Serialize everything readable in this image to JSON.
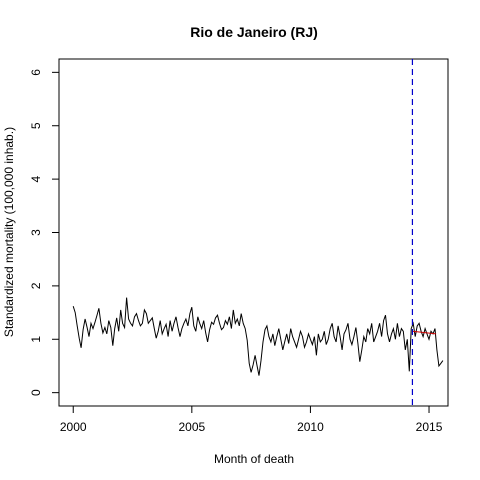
{
  "chart_data": {
    "type": "line",
    "title": "Rio de Janeiro (RJ)",
    "xlabel": "Month of death",
    "ylabel": "Standardized mortality (100,000 inhab.)",
    "xlim": [
      1999.4,
      2015.8
    ],
    "ylim": [
      -0.25,
      6.25
    ],
    "x_ticks": [
      2000,
      2005,
      2010,
      2015
    ],
    "x_tick_labels": [
      "2000",
      "2005",
      "2010",
      "2015"
    ],
    "y_ticks": [
      0,
      1,
      2,
      3,
      4,
      5,
      6
    ],
    "y_tick_labels": [
      "0",
      "1",
      "2",
      "3",
      "4",
      "5",
      "6"
    ],
    "grid": false,
    "series": [
      {
        "color": "#000000",
        "x_start": 2000.0,
        "x_step": 0.0833333,
        "values": [
          1.62,
          1.5,
          1.25,
          1.02,
          0.84,
          1.18,
          1.38,
          1.22,
          1.05,
          1.3,
          1.2,
          1.32,
          1.45,
          1.58,
          1.3,
          1.12,
          1.22,
          1.1,
          1.35,
          1.22,
          0.88,
          1.2,
          1.4,
          1.15,
          1.55,
          1.3,
          1.22,
          1.78,
          1.38,
          1.3,
          1.25,
          1.42,
          1.48,
          1.35,
          1.25,
          1.3,
          1.55,
          1.48,
          1.3,
          1.35,
          1.4,
          1.2,
          1.02,
          1.15,
          1.35,
          1.1,
          1.2,
          1.28,
          1.05,
          1.35,
          1.15,
          1.3,
          1.42,
          1.22,
          1.05,
          1.2,
          1.3,
          1.38,
          1.25,
          1.48,
          1.6,
          1.25,
          1.15,
          1.42,
          1.3,
          1.2,
          1.35,
          1.12,
          0.95,
          1.18,
          1.32,
          1.28,
          1.4,
          1.45,
          1.3,
          1.18,
          1.22,
          1.35,
          1.28,
          1.42,
          1.2,
          1.55,
          1.3,
          1.38,
          1.25,
          1.48,
          1.3,
          1.2,
          0.98,
          0.55,
          0.38,
          0.52,
          0.7,
          0.5,
          0.32,
          0.6,
          0.95,
          1.18,
          1.25,
          1.05,
          0.95,
          1.1,
          0.88,
          1.05,
          1.2,
          1.0,
          0.8,
          0.95,
          1.1,
          0.92,
          1.2,
          1.05,
          0.95,
          0.85,
          1.0,
          1.15,
          1.05,
          0.85,
          0.95,
          1.1,
          1.0,
          0.9,
          1.05,
          0.7,
          1.1,
          0.95,
          1.0,
          1.15,
          0.9,
          1.0,
          1.2,
          1.3,
          1.05,
          0.95,
          1.25,
          1.05,
          0.8,
          1.1,
          1.18,
          1.3,
          1.0,
          0.9,
          1.05,
          1.22,
          0.92,
          0.58,
          0.8,
          1.05,
          0.95,
          1.2,
          1.1,
          1.3,
          0.95,
          1.05,
          1.15,
          1.3,
          1.05,
          1.35,
          1.45,
          1.1,
          0.95,
          1.1,
          1.2,
          1.0,
          1.3,
          1.05,
          1.2,
          1.15,
          0.8,
          1.0,
          0.4,
          1.2,
          1.3,
          1.05,
          1.25,
          1.3,
          1.15,
          1.05,
          1.2,
          1.1,
          1.0,
          1.15,
          1.1,
          1.2,
          0.8,
          0.5,
          0.55,
          0.6
        ]
      },
      {
        "color": "#cc0000",
        "x": [
          2014.3,
          2015.3
        ],
        "values": [
          1.15,
          1.1
        ]
      }
    ],
    "vlines": [
      {
        "x": 2014.3,
        "color": "#0000cc",
        "style": "dashed"
      }
    ]
  }
}
